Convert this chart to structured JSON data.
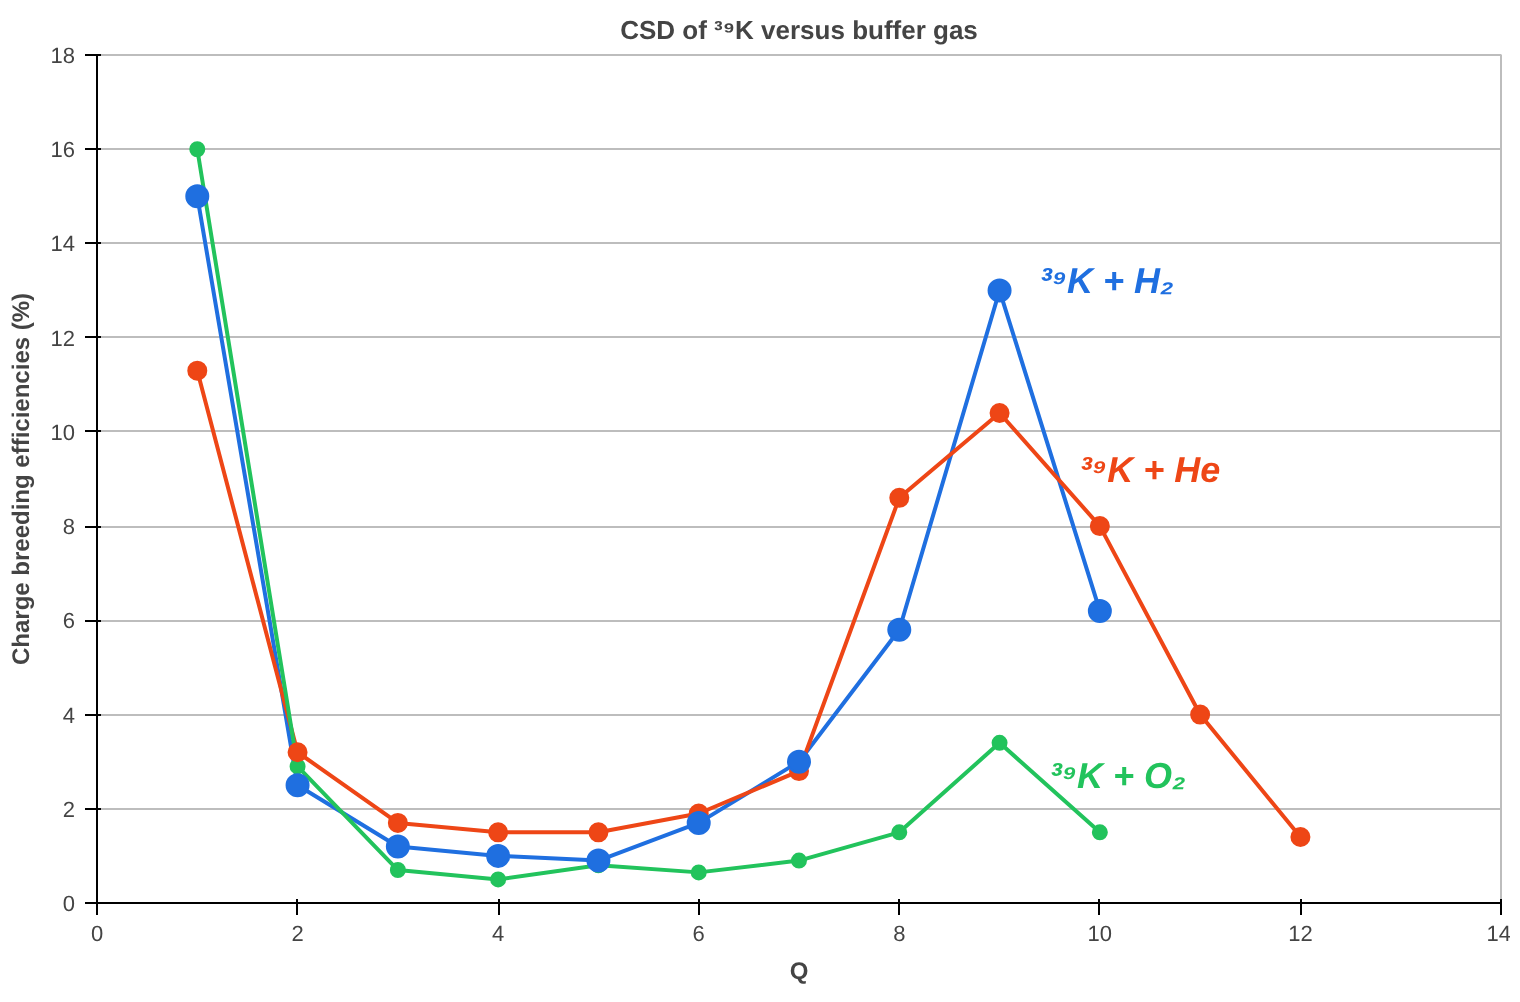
{
  "chart_data": {
    "type": "line",
    "title": "CSD of ³⁹K versus buffer gas",
    "xlabel": "Q",
    "ylabel": "Charge breeding efficiencies (%)",
    "xlim": [
      0,
      14
    ],
    "xticks": [
      0,
      2,
      4,
      6,
      8,
      10,
      12,
      14
    ],
    "ylim": [
      0,
      18
    ],
    "yticks": [
      0,
      2,
      4,
      6,
      8,
      10,
      12,
      14,
      16,
      18
    ],
    "grid": "y",
    "marker": "circle",
    "line_style": "solid",
    "series": [
      {
        "name": "³⁹K + H₂",
        "color": "#1f6fe0",
        "x": [
          1,
          2,
          3,
          4,
          5,
          6,
          7,
          8,
          9,
          10
        ],
        "values": [
          15,
          2.5,
          1.2,
          1.0,
          0.9,
          1.7,
          3.0,
          5.8,
          13,
          6.2
        ]
      },
      {
        "name": "³⁹K + He",
        "color": "#ee4616",
        "x": [
          1,
          2,
          3,
          4,
          5,
          6,
          7,
          8,
          9,
          10,
          11,
          12
        ],
        "values": [
          11.3,
          3.2,
          1.7,
          1.5,
          1.5,
          1.9,
          2.8,
          8.6,
          10.4,
          8.0,
          4.0,
          1.4
        ]
      },
      {
        "name": "³⁹K + O₂",
        "color": "#22c35c",
        "x": [
          1,
          2,
          3,
          4,
          5,
          6,
          7,
          8,
          9,
          10
        ],
        "values": [
          16,
          2.9,
          0.7,
          0.5,
          0.8,
          0.65,
          0.9,
          1.5,
          3.4,
          1.5
        ]
      }
    ]
  }
}
